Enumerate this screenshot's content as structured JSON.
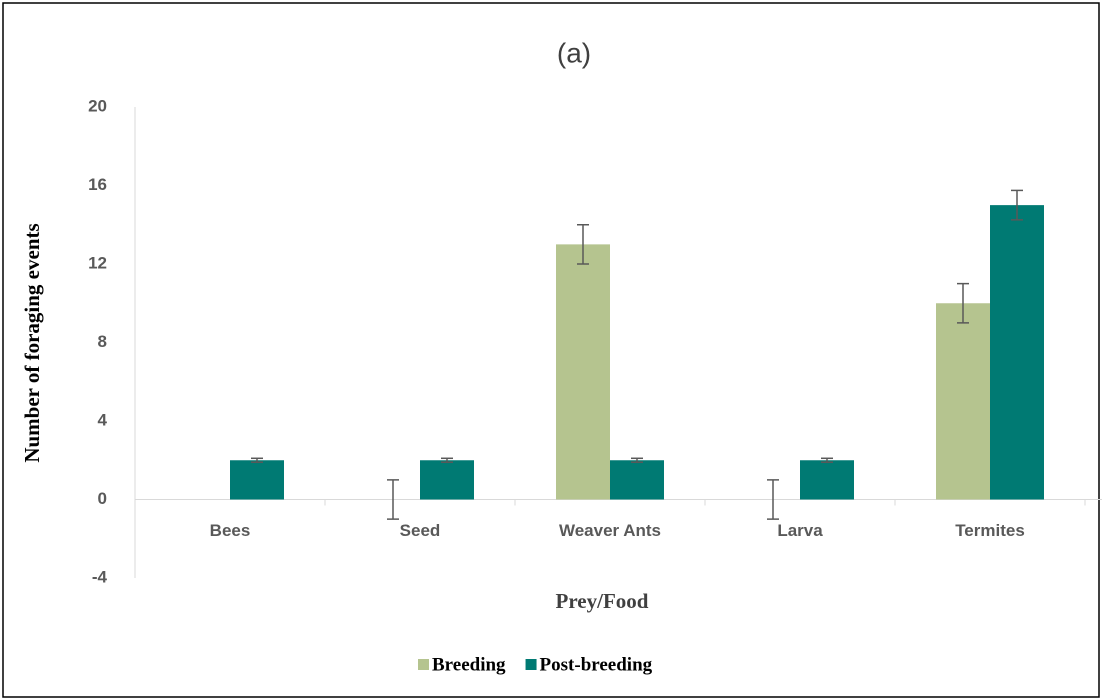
{
  "chart_data": {
    "type": "bar",
    "title": "(a)",
    "x_label": "Prey/Food",
    "y_label": "Number of foraging events",
    "categories": [
      "Bees",
      "Seed",
      "Weaver Ants",
      "Larva",
      "Termites"
    ],
    "series": [
      {
        "name": "Breeding",
        "color": "#b5c48f",
        "values": [
          0,
          0,
          13,
          0,
          10
        ],
        "errors": [
          null,
          1,
          1,
          1,
          1
        ]
      },
      {
        "name": "Post-breeding",
        "color": "#007a73",
        "values": [
          2,
          2,
          2,
          2,
          15
        ],
        "errors": [
          0.1,
          0.1,
          0.1,
          0.1,
          0.75
        ]
      }
    ],
    "ylim": [
      -4,
      20
    ],
    "yticks": [
      -4,
      0,
      4,
      8,
      12,
      16,
      20
    ],
    "grid": false,
    "legend": "bottom"
  }
}
